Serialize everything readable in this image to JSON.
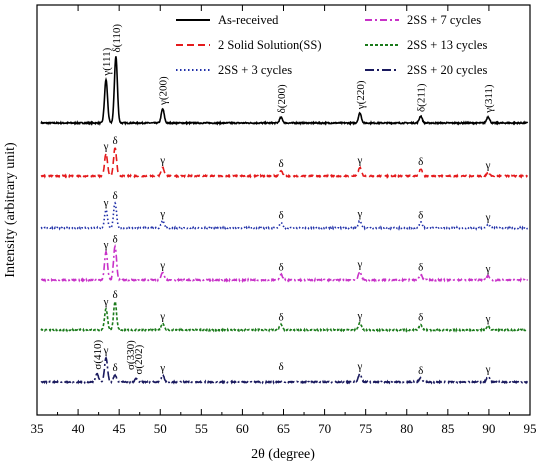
{
  "chart_data": {
    "type": "line",
    "xlabel": "2θ (degree)",
    "ylabel": "Intensity (arbitrary unit)",
    "xlim": [
      35,
      95
    ],
    "x_ticks": [
      35,
      40,
      45,
      50,
      55,
      60,
      65,
      70,
      75,
      80,
      85,
      90,
      95
    ],
    "grid": false,
    "legend_position": "top",
    "series": [
      {
        "name": "As-received",
        "color": "#000000",
        "dash": "solid",
        "peaks": [
          [
            43.4,
            0.62
          ],
          [
            44.6,
            0.95
          ],
          [
            50.3,
            0.2
          ],
          [
            64.7,
            0.08
          ],
          [
            74.3,
            0.14
          ],
          [
            81.7,
            0.1
          ],
          [
            89.9,
            0.09
          ]
        ]
      },
      {
        "name": "2 Solid Solution(SS)",
        "color": "#e41a1c",
        "dash": "dashed",
        "peaks": [
          [
            43.4,
            0.32
          ],
          [
            44.5,
            0.4
          ],
          [
            50.3,
            0.12
          ],
          [
            64.7,
            0.07
          ],
          [
            74.3,
            0.12
          ],
          [
            81.7,
            0.1
          ],
          [
            89.9,
            0.05
          ]
        ]
      },
      {
        "name": "2SS + 3 cycles",
        "color": "#1f2fa8",
        "dash": "dotted",
        "peaks": [
          [
            43.4,
            0.26
          ],
          [
            44.5,
            0.36
          ],
          [
            50.3,
            0.1
          ],
          [
            64.7,
            0.08
          ],
          [
            74.3,
            0.1
          ],
          [
            81.7,
            0.08
          ],
          [
            89.9,
            0.05
          ]
        ]
      },
      {
        "name": "2SS + 7 cycles",
        "color": "#c832c8",
        "dash": "dashdot",
        "peaks": [
          [
            43.4,
            0.4
          ],
          [
            44.5,
            0.48
          ],
          [
            50.3,
            0.11
          ],
          [
            64.7,
            0.08
          ],
          [
            74.3,
            0.12
          ],
          [
            81.7,
            0.08
          ],
          [
            89.9,
            0.06
          ]
        ]
      },
      {
        "name": "2SS + 13 cycles",
        "color": "#1a7a1a",
        "dash": "dashed-short",
        "peaks": [
          [
            43.4,
            0.3
          ],
          [
            44.5,
            0.4
          ],
          [
            50.3,
            0.09
          ],
          [
            64.7,
            0.08
          ],
          [
            74.3,
            0.1
          ],
          [
            81.7,
            0.08
          ],
          [
            89.9,
            0.06
          ]
        ]
      },
      {
        "name": "2SS + 20 cycles",
        "color": "#1a1a5e",
        "dash": "dashdot-long",
        "peaks": [
          [
            42.3,
            0.12
          ],
          [
            43.4,
            0.35
          ],
          [
            44.5,
            0.1
          ],
          [
            47.1,
            0.05
          ],
          [
            50.3,
            0.1
          ],
          [
            74.3,
            0.12
          ],
          [
            81.7,
            0.06
          ],
          [
            89.9,
            0.08
          ]
        ]
      }
    ],
    "annotations": [
      {
        "text": "γ(111)",
        "x": 43.4,
        "series": 0
      },
      {
        "text": "δ(110)",
        "x": 44.6,
        "series": 0
      },
      {
        "text": "γ(200)",
        "x": 50.3,
        "series": 0
      },
      {
        "text": "δ(200)",
        "x": 64.7,
        "series": 0
      },
      {
        "text": "γ(220)",
        "x": 74.3,
        "series": 0
      },
      {
        "text": "δ(211)",
        "x": 81.7,
        "series": 0
      },
      {
        "text": "γ(311)",
        "x": 89.9,
        "series": 0
      },
      {
        "text": "γ",
        "x": 43.4,
        "series": 1
      },
      {
        "text": "δ",
        "x": 44.5,
        "series": 1
      },
      {
        "text": "γ",
        "x": 50.3,
        "series": 1
      },
      {
        "text": "δ",
        "x": 64.7,
        "series": 1
      },
      {
        "text": "γ",
        "x": 74.3,
        "series": 1
      },
      {
        "text": "δ",
        "x": 81.7,
        "series": 1
      },
      {
        "text": "γ",
        "x": 89.9,
        "series": 1
      },
      {
        "text": "γ",
        "x": 43.4,
        "series": 2
      },
      {
        "text": "δ",
        "x": 44.5,
        "series": 2
      },
      {
        "text": "γ",
        "x": 50.3,
        "series": 2
      },
      {
        "text": "δ",
        "x": 64.7,
        "series": 2
      },
      {
        "text": "γ",
        "x": 74.3,
        "series": 2
      },
      {
        "text": "δ",
        "x": 81.7,
        "series": 2
      },
      {
        "text": "γ",
        "x": 89.9,
        "series": 2
      },
      {
        "text": "γ",
        "x": 43.4,
        "series": 3
      },
      {
        "text": "δ",
        "x": 44.5,
        "series": 3
      },
      {
        "text": "γ",
        "x": 50.3,
        "series": 3
      },
      {
        "text": "δ",
        "x": 64.7,
        "series": 3
      },
      {
        "text": "γ",
        "x": 74.3,
        "series": 3
      },
      {
        "text": "δ",
        "x": 81.7,
        "series": 3
      },
      {
        "text": "γ",
        "x": 89.9,
        "series": 3
      },
      {
        "text": "γ",
        "x": 43.4,
        "series": 4
      },
      {
        "text": "δ",
        "x": 44.5,
        "series": 4
      },
      {
        "text": "γ",
        "x": 50.3,
        "series": 4
      },
      {
        "text": "δ",
        "x": 64.7,
        "series": 4
      },
      {
        "text": "γ",
        "x": 74.3,
        "series": 4
      },
      {
        "text": "δ",
        "x": 81.7,
        "series": 4
      },
      {
        "text": "γ",
        "x": 89.9,
        "series": 4
      },
      {
        "text": "σ(410)",
        "x": 42.3,
        "series": 5
      },
      {
        "text": "γ",
        "x": 43.4,
        "series": 5
      },
      {
        "text": "δ",
        "x": 44.5,
        "series": 5
      },
      {
        "text": "σ(330)",
        "x": 46.3,
        "series": 5
      },
      {
        "text": "σ(202)",
        "x": 47.3,
        "series": 5
      },
      {
        "text": "γ",
        "x": 50.3,
        "series": 5
      },
      {
        "text": "δ",
        "x": 64.7,
        "series": 5
      },
      {
        "text": "γ",
        "x": 74.3,
        "series": 5
      },
      {
        "text": "δ",
        "x": 81.7,
        "series": 5
      },
      {
        "text": "γ",
        "x": 89.9,
        "series": 5
      }
    ]
  }
}
